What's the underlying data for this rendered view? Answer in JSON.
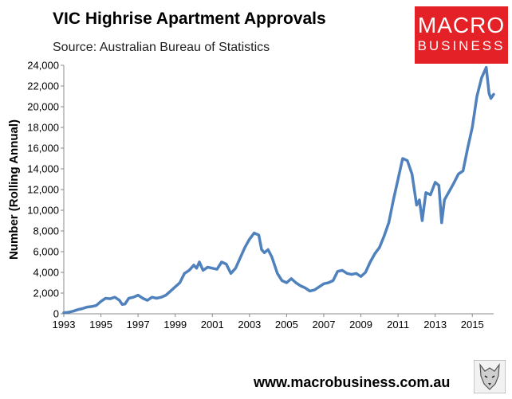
{
  "header": {
    "title": "VIC Highrise Apartment Approvals",
    "subtitle": "Source: Australian Bureau of Statistics"
  },
  "logo": {
    "line1": "MACRO",
    "line2": "BUSINESS"
  },
  "footer": {
    "url": "www.macrobusiness.com.au",
    "icon": "wolf-icon"
  },
  "colors": {
    "line": "#4f81bd",
    "logo_bg": "#e32126",
    "axis": "#888888"
  },
  "chart_data": {
    "type": "line",
    "title": "VIC Highrise Apartment Approvals",
    "ylabel": "Number (Rolling Annual)",
    "xlabel": "",
    "ylim": [
      0,
      24000
    ],
    "xlim": [
      1993.0,
      2016.15
    ],
    "grid": false,
    "yticks": [
      "0",
      "2,000",
      "4,000",
      "6,000",
      "8,000",
      "10,000",
      "12,000",
      "14,000",
      "16,000",
      "18,000",
      "20,000",
      "22,000",
      "24,000"
    ],
    "xticks": [
      "1993",
      "1995",
      "1997",
      "1999",
      "2001",
      "2003",
      "2005",
      "2007",
      "2009",
      "2011",
      "2013",
      "2015"
    ],
    "series": [
      {
        "x": [
          1993.0,
          1993.25,
          1993.5,
          1993.75,
          1994.0,
          1994.25,
          1994.5,
          1994.75,
          1995.0,
          1995.25,
          1995.5,
          1995.75,
          1996.0,
          1996.15,
          1996.3,
          1996.5,
          1996.75,
          1997.0,
          1997.25,
          1997.5,
          1997.75,
          1998.0,
          1998.25,
          1998.5,
          1998.75,
          1999.0,
          1999.25,
          1999.5,
          1999.75,
          2000.0,
          2000.15,
          2000.3,
          2000.5,
          2000.75,
          2001.0,
          2001.25,
          2001.5,
          2001.75,
          2002.0,
          2002.25,
          2002.5,
          2002.75,
          2003.0,
          2003.25,
          2003.5,
          2003.65,
          2003.8,
          2004.0,
          2004.2,
          2004.5,
          2004.75,
          2005.0,
          2005.25,
          2005.5,
          2005.75,
          2006.0,
          2006.25,
          2006.5,
          2006.75,
          2007.0,
          2007.25,
          2007.5,
          2007.75,
          2008.0,
          2008.25,
          2008.5,
          2008.75,
          2009.0,
          2009.25,
          2009.5,
          2009.75,
          2010.0,
          2010.25,
          2010.5,
          2010.75,
          2011.0,
          2011.25,
          2011.5,
          2011.75,
          2012.0,
          2012.15,
          2012.3,
          2012.5,
          2012.75,
          2013.0,
          2013.2,
          2013.35,
          2013.5,
          2013.75,
          2014.0,
          2014.25,
          2014.5,
          2014.75,
          2015.0,
          2015.25,
          2015.5,
          2015.75,
          2015.9,
          2016.0,
          2016.15
        ],
        "values": [
          100,
          150,
          250,
          400,
          500,
          650,
          700,
          800,
          1200,
          1500,
          1450,
          1600,
          1300,
          900,
          950,
          1500,
          1600,
          1800,
          1500,
          1300,
          1600,
          1500,
          1600,
          1800,
          2200,
          2600,
          3000,
          3900,
          4200,
          4700,
          4400,
          5000,
          4200,
          4500,
          4400,
          4300,
          5000,
          4800,
          3900,
          4400,
          5400,
          6400,
          7200,
          7800,
          7600,
          6200,
          5900,
          6200,
          5500,
          3900,
          3200,
          3000,
          3400,
          3000,
          2700,
          2500,
          2200,
          2300,
          2600,
          2900,
          3000,
          3200,
          4100,
          4200,
          3900,
          3800,
          3900,
          3600,
          4000,
          5000,
          5800,
          6400,
          7500,
          8800,
          11000,
          13000,
          15000,
          14800,
          13500,
          10500,
          11000,
          9000,
          11700,
          11500,
          12700,
          12400,
          8800,
          11000,
          11800,
          12600,
          13500,
          13800,
          16000,
          18000,
          21000,
          22800,
          23800,
          21300,
          20800,
          21200
        ]
      }
    ]
  }
}
